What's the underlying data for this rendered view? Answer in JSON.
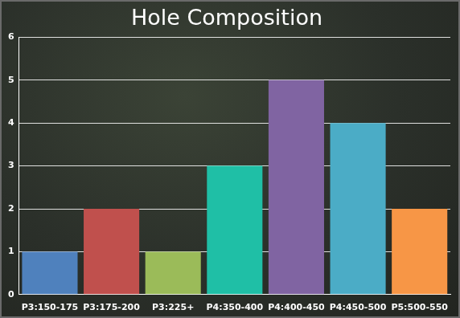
{
  "chart_data": {
    "type": "bar",
    "title": "Hole Composition",
    "categories": [
      "P3:150-175",
      "P3:175-200",
      "P3:225+",
      "P4:350-400",
      "P4:400-450",
      "P4:450-500",
      "P5:500-550"
    ],
    "values": [
      1,
      2,
      1,
      3,
      5,
      4,
      2
    ],
    "colors": [
      "#4f81bd",
      "#c0504d",
      "#9bbb59",
      "#1fbfa6",
      "#8064a2",
      "#4bacc6",
      "#f79646"
    ],
    "ylim": [
      0,
      6
    ],
    "yticks": [
      0,
      1,
      2,
      3,
      4,
      5,
      6
    ],
    "grid": true
  }
}
